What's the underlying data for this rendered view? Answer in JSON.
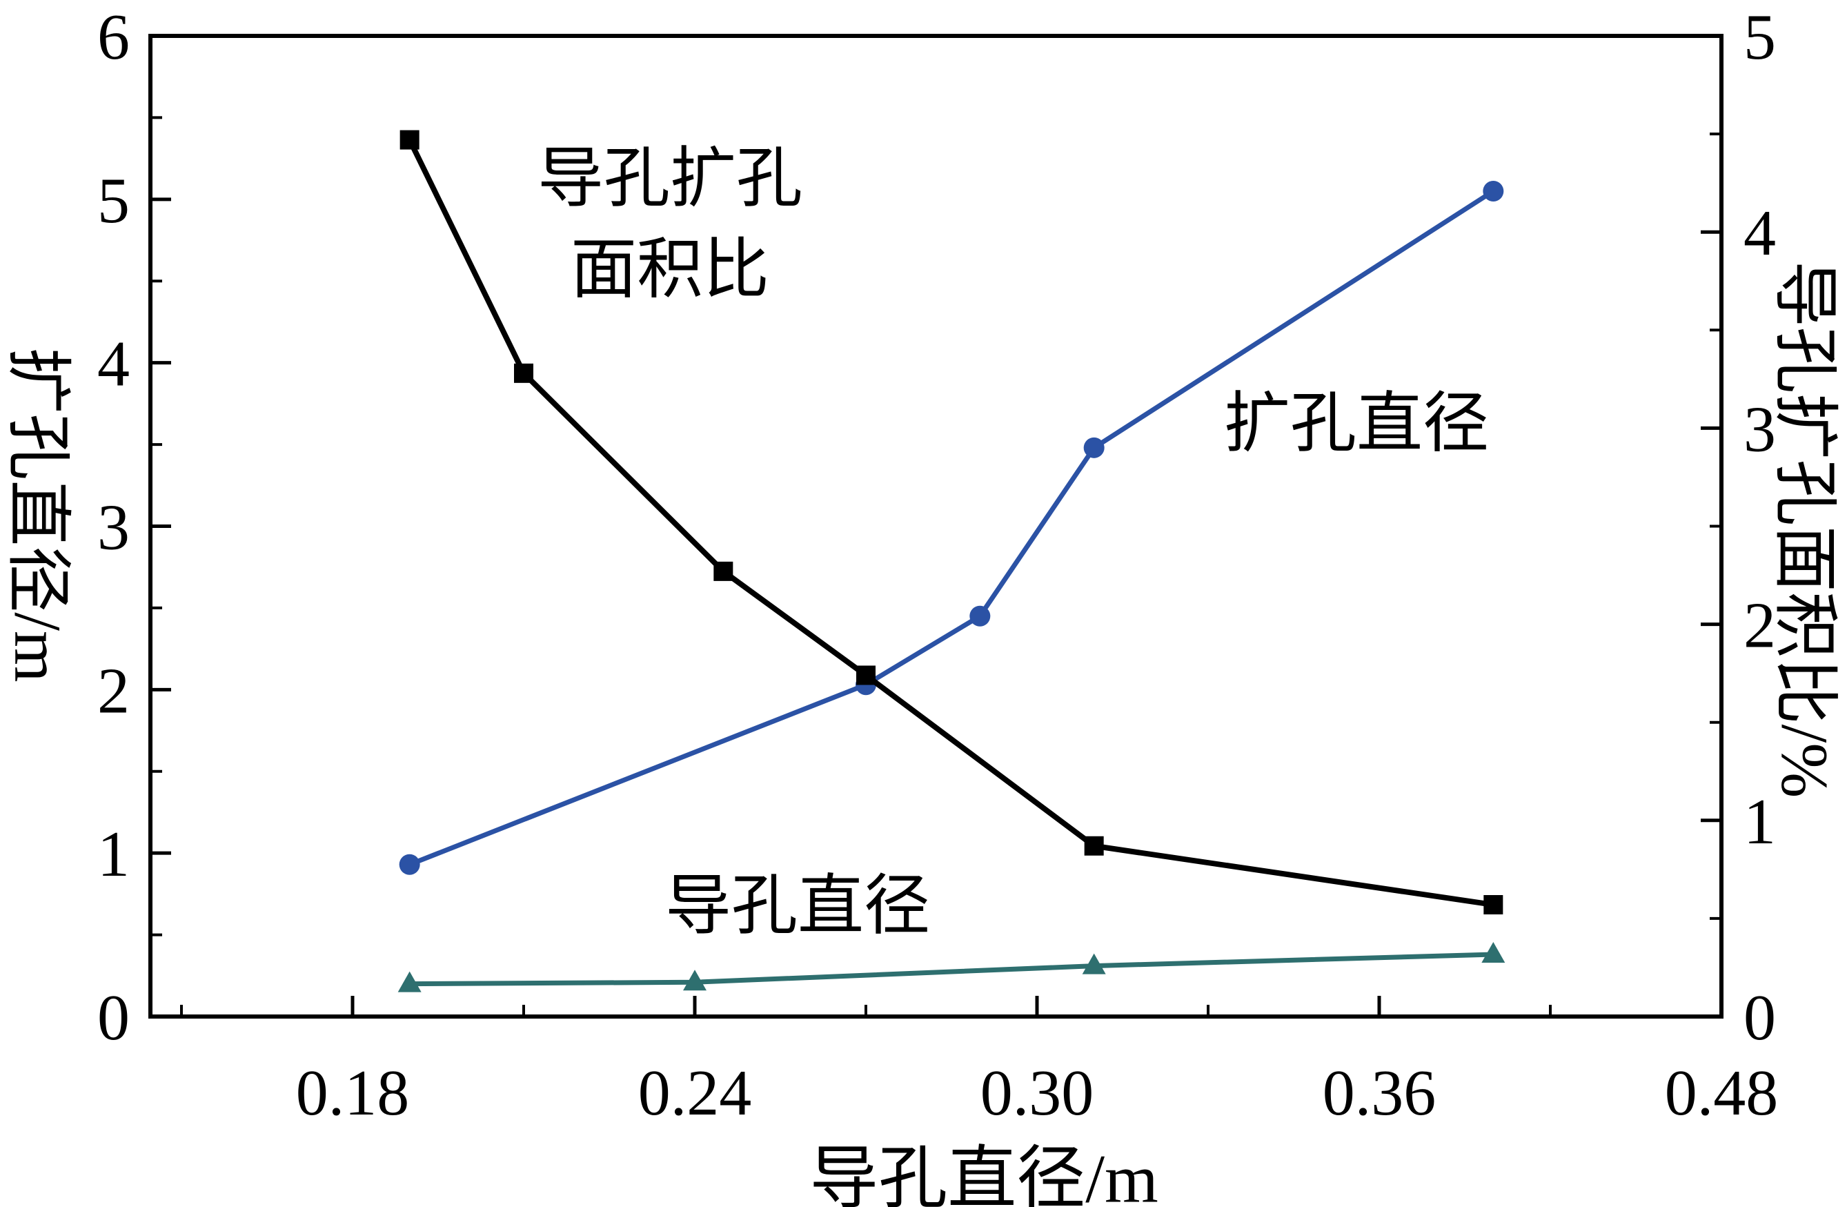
{
  "chart_data": {
    "type": "line",
    "title": "",
    "xlabel": "导孔直径/m",
    "ylabel_left": "扩孔直径/m",
    "ylabel_right": "导孔扩孔面积比/%",
    "grid": false,
    "legend": "inline text annotations",
    "x_axis": {
      "ticks": [
        0.18,
        0.24,
        0.3,
        0.36,
        0.48
      ],
      "tick_labels": [
        "0.18",
        "0.24",
        "0.30",
        "0.36",
        "0.48"
      ],
      "spacing": "equal pixel spacing between ticks (last interval 0.36-0.48 compressed)"
    },
    "y_axis_left": {
      "min": 0,
      "max": 6,
      "ticks": [
        0,
        1,
        2,
        3,
        4,
        5,
        6
      ],
      "tick_labels": [
        "0",
        "1",
        "2",
        "3",
        "4",
        "5",
        "6"
      ]
    },
    "y_axis_right": {
      "min": 0,
      "max": 5,
      "ticks": [
        0,
        1,
        2,
        3,
        4,
        5
      ],
      "tick_labels": [
        "0",
        "1",
        "2",
        "3",
        "4",
        "5"
      ]
    },
    "series": [
      {
        "name": "扩孔直径",
        "axis": "left",
        "marker": "circle",
        "color": "#2b52a5",
        "x": [
          0.19,
          0.27,
          0.29,
          0.31,
          0.4
        ],
        "y": [
          0.93,
          2.03,
          2.45,
          3.48,
          5.05
        ]
      },
      {
        "name": "导孔直径",
        "axis": "left",
        "marker": "triangle",
        "color": "#2e6f6f",
        "x": [
          0.19,
          0.24,
          0.31,
          0.4
        ],
        "y": [
          0.2,
          0.21,
          0.31,
          0.38
        ]
      },
      {
        "name": "导孔扩孔面积比",
        "axis": "right",
        "marker": "square",
        "color": "#000000",
        "x": [
          0.19,
          0.21,
          0.245,
          0.27,
          0.31,
          0.4
        ],
        "y": [
          4.47,
          3.28,
          2.27,
          1.74,
          0.87,
          0.57
        ]
      }
    ],
    "annotations": {
      "area_ratio_line1": "导孔扩孔",
      "area_ratio_line2": "面积比",
      "reamed_diameter": "扩孔直径",
      "pilot_diameter": "导孔直径"
    }
  }
}
